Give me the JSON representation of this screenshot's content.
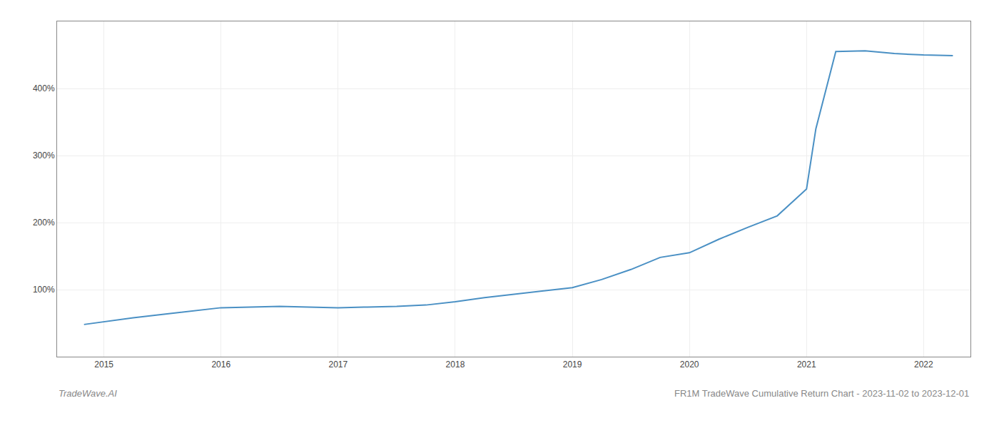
{
  "chart_data": {
    "type": "line",
    "title": "FR1M TradeWave Cumulative Return Chart - 2023-11-02 to 2023-12-01",
    "annotations": [
      "TradeWave.AI"
    ],
    "x": [
      2014.83,
      2015.0,
      2015.25,
      2015.5,
      2015.75,
      2016.0,
      2016.25,
      2016.5,
      2016.75,
      2017.0,
      2017.25,
      2017.5,
      2017.75,
      2018.0,
      2018.25,
      2018.5,
      2018.75,
      2019.0,
      2019.25,
      2019.5,
      2019.75,
      2020.0,
      2020.25,
      2020.5,
      2020.75,
      2021.0,
      2021.08,
      2021.25,
      2021.5,
      2021.75,
      2022.0,
      2022.25
    ],
    "values": [
      48,
      52,
      58,
      63,
      68,
      73,
      74,
      75,
      74,
      73,
      74,
      75,
      77,
      82,
      88,
      93,
      98,
      103,
      115,
      130,
      148,
      155,
      175,
      193,
      210,
      250,
      340,
      455,
      456,
      452,
      450,
      449
    ],
    "color": "#4a90c4",
    "xlim": [
      2014.6,
      2022.4
    ],
    "xticks": [
      2015,
      2016,
      2017,
      2018,
      2019,
      2020,
      2021,
      2022
    ],
    "ylim": [
      0,
      500
    ],
    "yticks": [
      {
        "value": 100,
        "label": "100%"
      },
      {
        "value": 200,
        "label": "200%"
      },
      {
        "value": 300,
        "label": "300%"
      },
      {
        "value": 400,
        "label": "400%"
      }
    ],
    "grid": true
  }
}
